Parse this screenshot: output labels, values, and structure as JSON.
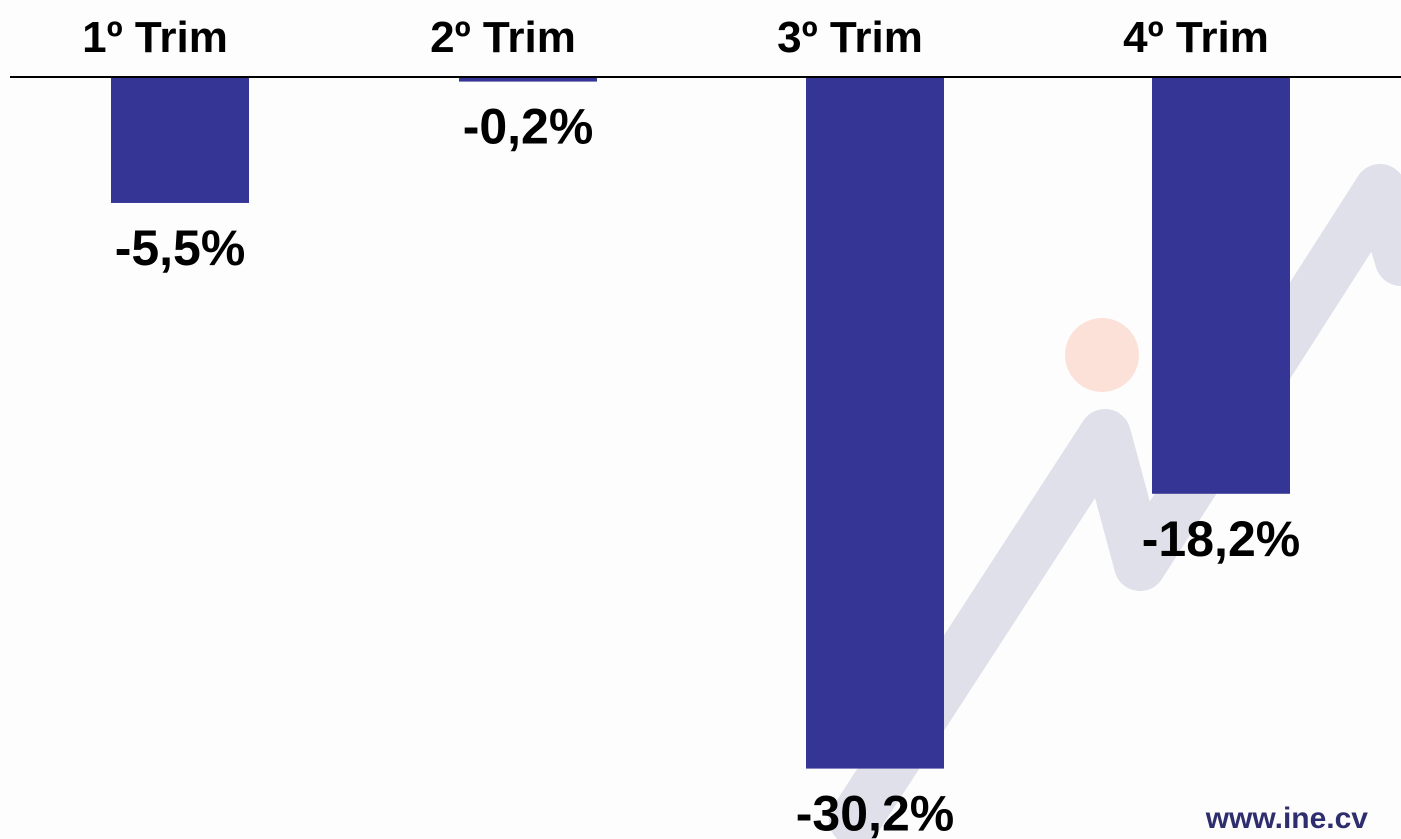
{
  "chart_data": {
    "type": "bar",
    "categories": [
      "1º Trim",
      "2º Trim",
      "3º Trim",
      "4º Trim"
    ],
    "values": [
      -5.5,
      -0.2,
      -30.2,
      -18.2
    ],
    "value_labels": [
      "-5,5%",
      "-0,2%",
      "-30,2%",
      "-18,2%"
    ],
    "title": "",
    "xlabel": "",
    "ylabel": "",
    "ylim": [
      -31,
      0
    ],
    "category_axis_position": "top",
    "grid": false,
    "bar_color": "#353596"
  },
  "watermark": {
    "text": "www.ine.cv",
    "text_color": "#2e2e6e",
    "line_color": "#dfe0ea",
    "dot_color": "#fce1d8"
  }
}
